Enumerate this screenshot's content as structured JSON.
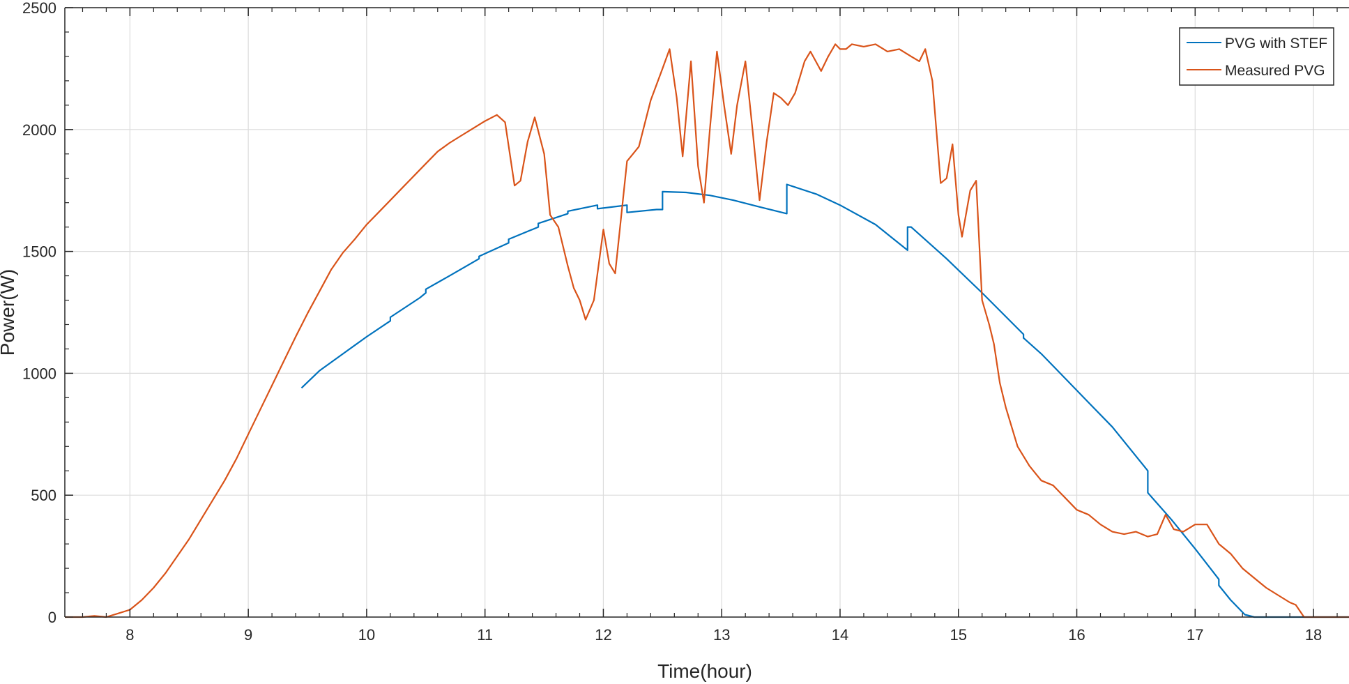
{
  "chart_data": {
    "type": "line",
    "title": "",
    "xlabel": "Time(hour)",
    "ylabel": "Power(W)",
    "xlim": [
      7.45,
      18.3
    ],
    "ylim": [
      0,
      2500
    ],
    "xticks": [
      8,
      9,
      10,
      11,
      12,
      13,
      14,
      15,
      16,
      17,
      18
    ],
    "yticks": [
      0,
      500,
      1000,
      1500,
      2000,
      2500
    ],
    "grid": true,
    "legend_position": "top-right",
    "series": [
      {
        "name": "PVG with STEF",
        "color": "#0072BD",
        "x": [
          9.45,
          9.6,
          9.8,
          10.0,
          10.2,
          10.2,
          10.45,
          10.5,
          10.5,
          10.7,
          10.95,
          10.95,
          11.2,
          11.2,
          11.45,
          11.45,
          11.7,
          11.7,
          11.95,
          11.95,
          12.2,
          12.2,
          12.45,
          12.5,
          12.5,
          12.7,
          12.9,
          13.1,
          13.3,
          13.55,
          13.55,
          13.8,
          14.0,
          14.3,
          14.57,
          14.57,
          14.6,
          14.9,
          15.2,
          15.55,
          15.55,
          15.7,
          15.9,
          16.1,
          16.3,
          16.6,
          16.6,
          16.8,
          17.0,
          17.2,
          17.2,
          17.3,
          17.42,
          17.5,
          17.8,
          18.3
        ],
        "values": [
          940,
          1010,
          1080,
          1150,
          1215,
          1230,
          1310,
          1330,
          1345,
          1400,
          1470,
          1480,
          1535,
          1550,
          1600,
          1615,
          1655,
          1665,
          1690,
          1675,
          1690,
          1660,
          1672,
          1672,
          1745,
          1742,
          1730,
          1710,
          1685,
          1655,
          1775,
          1735,
          1690,
          1610,
          1505,
          1600,
          1600,
          1470,
          1330,
          1160,
          1145,
          1080,
          980,
          880,
          780,
          600,
          510,
          400,
          280,
          155,
          130,
          70,
          10,
          0,
          0,
          0
        ]
      },
      {
        "name": "Measured PVG",
        "color": "#D95319",
        "x": [
          7.45,
          7.6,
          7.7,
          7.8,
          7.9,
          8.0,
          8.1,
          8.2,
          8.3,
          8.4,
          8.5,
          8.6,
          8.7,
          8.8,
          8.9,
          9.0,
          9.1,
          9.2,
          9.3,
          9.4,
          9.5,
          9.6,
          9.7,
          9.8,
          9.9,
          10.0,
          10.1,
          10.2,
          10.3,
          10.4,
          10.5,
          10.6,
          10.7,
          10.8,
          10.9,
          11.0,
          11.1,
          11.17,
          11.25,
          11.3,
          11.36,
          11.42,
          11.5,
          11.55,
          11.62,
          11.7,
          11.75,
          11.8,
          11.85,
          11.92,
          12.0,
          12.05,
          12.1,
          12.2,
          12.25,
          12.3,
          12.4,
          12.5,
          12.56,
          12.62,
          12.67,
          12.74,
          12.8,
          12.85,
          12.9,
          12.96,
          13.02,
          13.08,
          13.13,
          13.2,
          13.26,
          13.32,
          13.38,
          13.44,
          13.5,
          13.56,
          13.62,
          13.7,
          13.75,
          13.84,
          13.9,
          13.96,
          14.0,
          14.05,
          14.1,
          14.2,
          14.3,
          14.4,
          14.5,
          14.6,
          14.67,
          14.72,
          14.78,
          14.85,
          14.9,
          14.95,
          15.0,
          15.03,
          15.1,
          15.15,
          15.2,
          15.26,
          15.3,
          15.35,
          15.4,
          15.5,
          15.6,
          15.7,
          15.8,
          15.9,
          16.0,
          16.1,
          16.2,
          16.3,
          16.4,
          16.5,
          16.6,
          16.68,
          16.75,
          16.82,
          16.9,
          17.0,
          17.1,
          17.2,
          17.3,
          17.4,
          17.5,
          17.6,
          17.7,
          17.8,
          17.85,
          17.92,
          18.0,
          18.3
        ],
        "values": [
          0,
          0,
          5,
          0,
          15,
          30,
          70,
          120,
          180,
          250,
          320,
          400,
          480,
          560,
          650,
          750,
          850,
          950,
          1050,
          1150,
          1245,
          1335,
          1425,
          1495,
          1550,
          1610,
          1660,
          1710,
          1760,
          1810,
          1860,
          1910,
          1945,
          1975,
          2005,
          2035,
          2060,
          2030,
          1770,
          1790,
          1950,
          2050,
          1900,
          1650,
          1600,
          1440,
          1350,
          1300,
          1220,
          1300,
          1590,
          1450,
          1410,
          1870,
          1900,
          1930,
          2120,
          2250,
          2330,
          2130,
          1890,
          2280,
          1850,
          1700,
          2000,
          2320,
          2100,
          1900,
          2100,
          2280,
          2000,
          1710,
          1950,
          2150,
          2130,
          2100,
          2150,
          2280,
          2320,
          2240,
          2300,
          2350,
          2330,
          2330,
          2350,
          2340,
          2350,
          2320,
          2330,
          2300,
          2280,
          2330,
          2200,
          1780,
          1800,
          1940,
          1650,
          1560,
          1750,
          1790,
          1300,
          1200,
          1120,
          960,
          860,
          700,
          620,
          560,
          540,
          490,
          440,
          420,
          380,
          350,
          340,
          350,
          330,
          340,
          420,
          360,
          350,
          380,
          380,
          300,
          260,
          200,
          160,
          120,
          90,
          60,
          50,
          0,
          0,
          0
        ]
      }
    ]
  }
}
